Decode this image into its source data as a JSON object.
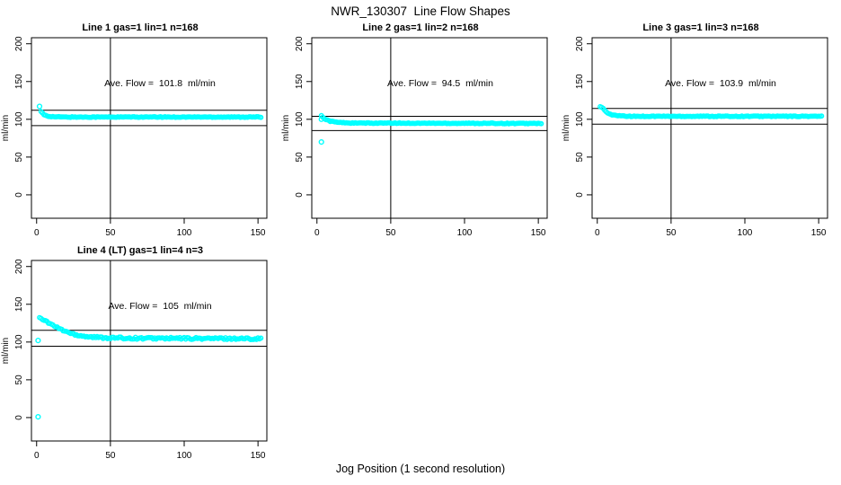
{
  "figure_title": "NWR_130307  Line Flow Shapes",
  "x_axis_label": "Jog Position (1 second resolution)",
  "colors": {
    "marker": "#00ffff",
    "axis": "#000000",
    "background": "#ffffff"
  },
  "chart_data": {
    "type": "scatter",
    "title": "NWR_130307  Line Flow Shapes",
    "xlabel": "Jog Position (1 second resolution)",
    "shared": {
      "ylabel": "ml/min",
      "xticks": [
        0,
        50,
        100,
        150
      ],
      "yticks": [
        0,
        50,
        100,
        150,
        200
      ],
      "xlim": [
        -3.5,
        156
      ],
      "ylim": [
        -31,
        208
      ],
      "vline_x": 50,
      "grid": false,
      "marker": "open-circle"
    },
    "panels": [
      {
        "title": "Line 1 gas=1 lin=1 n=168",
        "annotation": "Ave. Flow =  101.8  ml/min",
        "ave_flow_ml_min": 101.8,
        "hlines": [
          112.0,
          91.6
        ],
        "x_start": 3,
        "x_end": 152,
        "jitter": 0.5,
        "series_anchors": [
          [
            3,
            110
          ],
          [
            5,
            106
          ],
          [
            8,
            104
          ],
          [
            13,
            103.2
          ],
          [
            20,
            103
          ],
          [
            152,
            103
          ]
        ],
        "extra_points": [
          [
            2,
            117
          ]
        ]
      },
      {
        "title": "Line 2 gas=1 lin=2 n=168",
        "annotation": "Ave. Flow =  94.5  ml/min",
        "ave_flow_ml_min": 94.5,
        "hlines": [
          104.0,
          85.1
        ],
        "x_start": 3,
        "x_end": 152,
        "jitter": 0.5,
        "series_anchors": [
          [
            3,
            105
          ],
          [
            4,
            103
          ],
          [
            6,
            100
          ],
          [
            9,
            97.5
          ],
          [
            14,
            96
          ],
          [
            24,
            95
          ],
          [
            152,
            94.5
          ]
        ],
        "extra_points": [
          [
            3,
            100
          ],
          [
            3,
            70
          ]
        ]
      },
      {
        "title": "Line 3 gas=1 lin=3 n=168",
        "annotation": "Ave. Flow =  103.9  ml/min",
        "ave_flow_ml_min": 103.9,
        "hlines": [
          114.3,
          93.5
        ],
        "x_start": 2,
        "x_end": 152,
        "jitter": 0.5,
        "series_anchors": [
          [
            2,
            117
          ],
          [
            4,
            114
          ],
          [
            6,
            110
          ],
          [
            9,
            106.5
          ],
          [
            13,
            104.8
          ],
          [
            20,
            104
          ],
          [
            152,
            104
          ]
        ],
        "extra_points": []
      },
      {
        "title": "Line 4 (LT) gas=1 lin=4 n=3",
        "annotation": "Ave. Flow =  105  ml/min",
        "ave_flow_ml_min": 105,
        "hlines": [
          115.5,
          94.5
        ],
        "x_start": 2,
        "x_end": 152,
        "jitter": 1.3,
        "series_anchors": [
          [
            2,
            133
          ],
          [
            6,
            128
          ],
          [
            12,
            121
          ],
          [
            18,
            115.5
          ],
          [
            24,
            111
          ],
          [
            30,
            108.5
          ],
          [
            38,
            106.5
          ],
          [
            50,
            105.5
          ],
          [
            70,
            105
          ],
          [
            152,
            104.5
          ]
        ],
        "extra_points": [
          [
            1,
            102
          ],
          [
            1,
            1
          ]
        ]
      }
    ]
  }
}
